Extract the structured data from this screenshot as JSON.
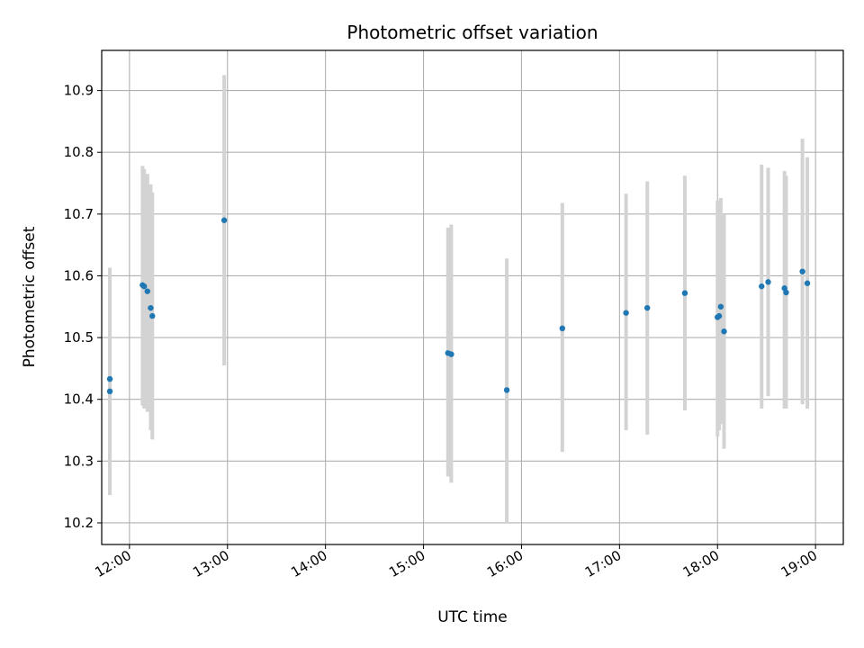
{
  "chart_data": {
    "type": "scatter",
    "title": "Photometric offset variation",
    "xlabel": "UTC time",
    "ylabel": "Photometric offset",
    "x_range": [
      "11:43",
      "19:17"
    ],
    "ylim": [
      10.165,
      10.965
    ],
    "grid": true,
    "x_ticks": [
      "12:00",
      "13:00",
      "14:00",
      "15:00",
      "16:00",
      "17:00",
      "18:00",
      "19:00"
    ],
    "y_ticks": [
      "10.2",
      "10.3",
      "10.4",
      "10.5",
      "10.6",
      "10.7",
      "10.8",
      "10.9"
    ],
    "point_color": "#1f77b4",
    "errorbar_color": "#d3d3d3",
    "series": [
      {
        "points": [
          {
            "x": "11:48",
            "y": 10.413,
            "low": 10.245,
            "high": 10.583
          },
          {
            "x": "11:48",
            "y": 10.433,
            "low": 10.255,
            "high": 10.613
          },
          {
            "x": "12:08",
            "y": 10.585,
            "low": 10.39,
            "high": 10.778
          },
          {
            "x": "12:09",
            "y": 10.583,
            "low": 10.385,
            "high": 10.773
          },
          {
            "x": "12:11",
            "y": 10.575,
            "low": 10.38,
            "high": 10.765
          },
          {
            "x": "12:13",
            "y": 10.548,
            "low": 10.35,
            "high": 10.748
          },
          {
            "x": "12:14",
            "y": 10.535,
            "low": 10.335,
            "high": 10.735
          },
          {
            "x": "12:58",
            "y": 10.69,
            "low": 10.455,
            "high": 10.925
          },
          {
            "x": "15:15",
            "y": 10.475,
            "low": 10.275,
            "high": 10.678
          },
          {
            "x": "15:17",
            "y": 10.473,
            "low": 10.265,
            "high": 10.683
          },
          {
            "x": "15:51",
            "y": 10.415,
            "low": 10.2,
            "high": 10.628
          },
          {
            "x": "16:25",
            "y": 10.515,
            "low": 10.315,
            "high": 10.718
          },
          {
            "x": "17:04",
            "y": 10.54,
            "low": 10.35,
            "high": 10.733
          },
          {
            "x": "17:17",
            "y": 10.548,
            "low": 10.343,
            "high": 10.753
          },
          {
            "x": "17:40",
            "y": 10.572,
            "low": 10.382,
            "high": 10.762
          },
          {
            "x": "18:00",
            "y": 10.533,
            "low": 10.34,
            "high": 10.722
          },
          {
            "x": "18:01",
            "y": 10.535,
            "low": 10.35,
            "high": 10.718
          },
          {
            "x": "18:02",
            "y": 10.55,
            "low": 10.36,
            "high": 10.726
          },
          {
            "x": "18:04",
            "y": 10.51,
            "low": 10.32,
            "high": 10.7
          },
          {
            "x": "18:27",
            "y": 10.583,
            "low": 10.385,
            "high": 10.78
          },
          {
            "x": "18:31",
            "y": 10.59,
            "low": 10.405,
            "high": 10.775
          },
          {
            "x": "18:41",
            "y": 10.58,
            "low": 10.385,
            "high": 10.77
          },
          {
            "x": "18:42",
            "y": 10.573,
            "low": 10.385,
            "high": 10.762
          },
          {
            "x": "18:52",
            "y": 10.607,
            "low": 10.392,
            "high": 10.822
          },
          {
            "x": "18:55",
            "y": 10.588,
            "low": 10.385,
            "high": 10.792
          }
        ]
      }
    ]
  }
}
